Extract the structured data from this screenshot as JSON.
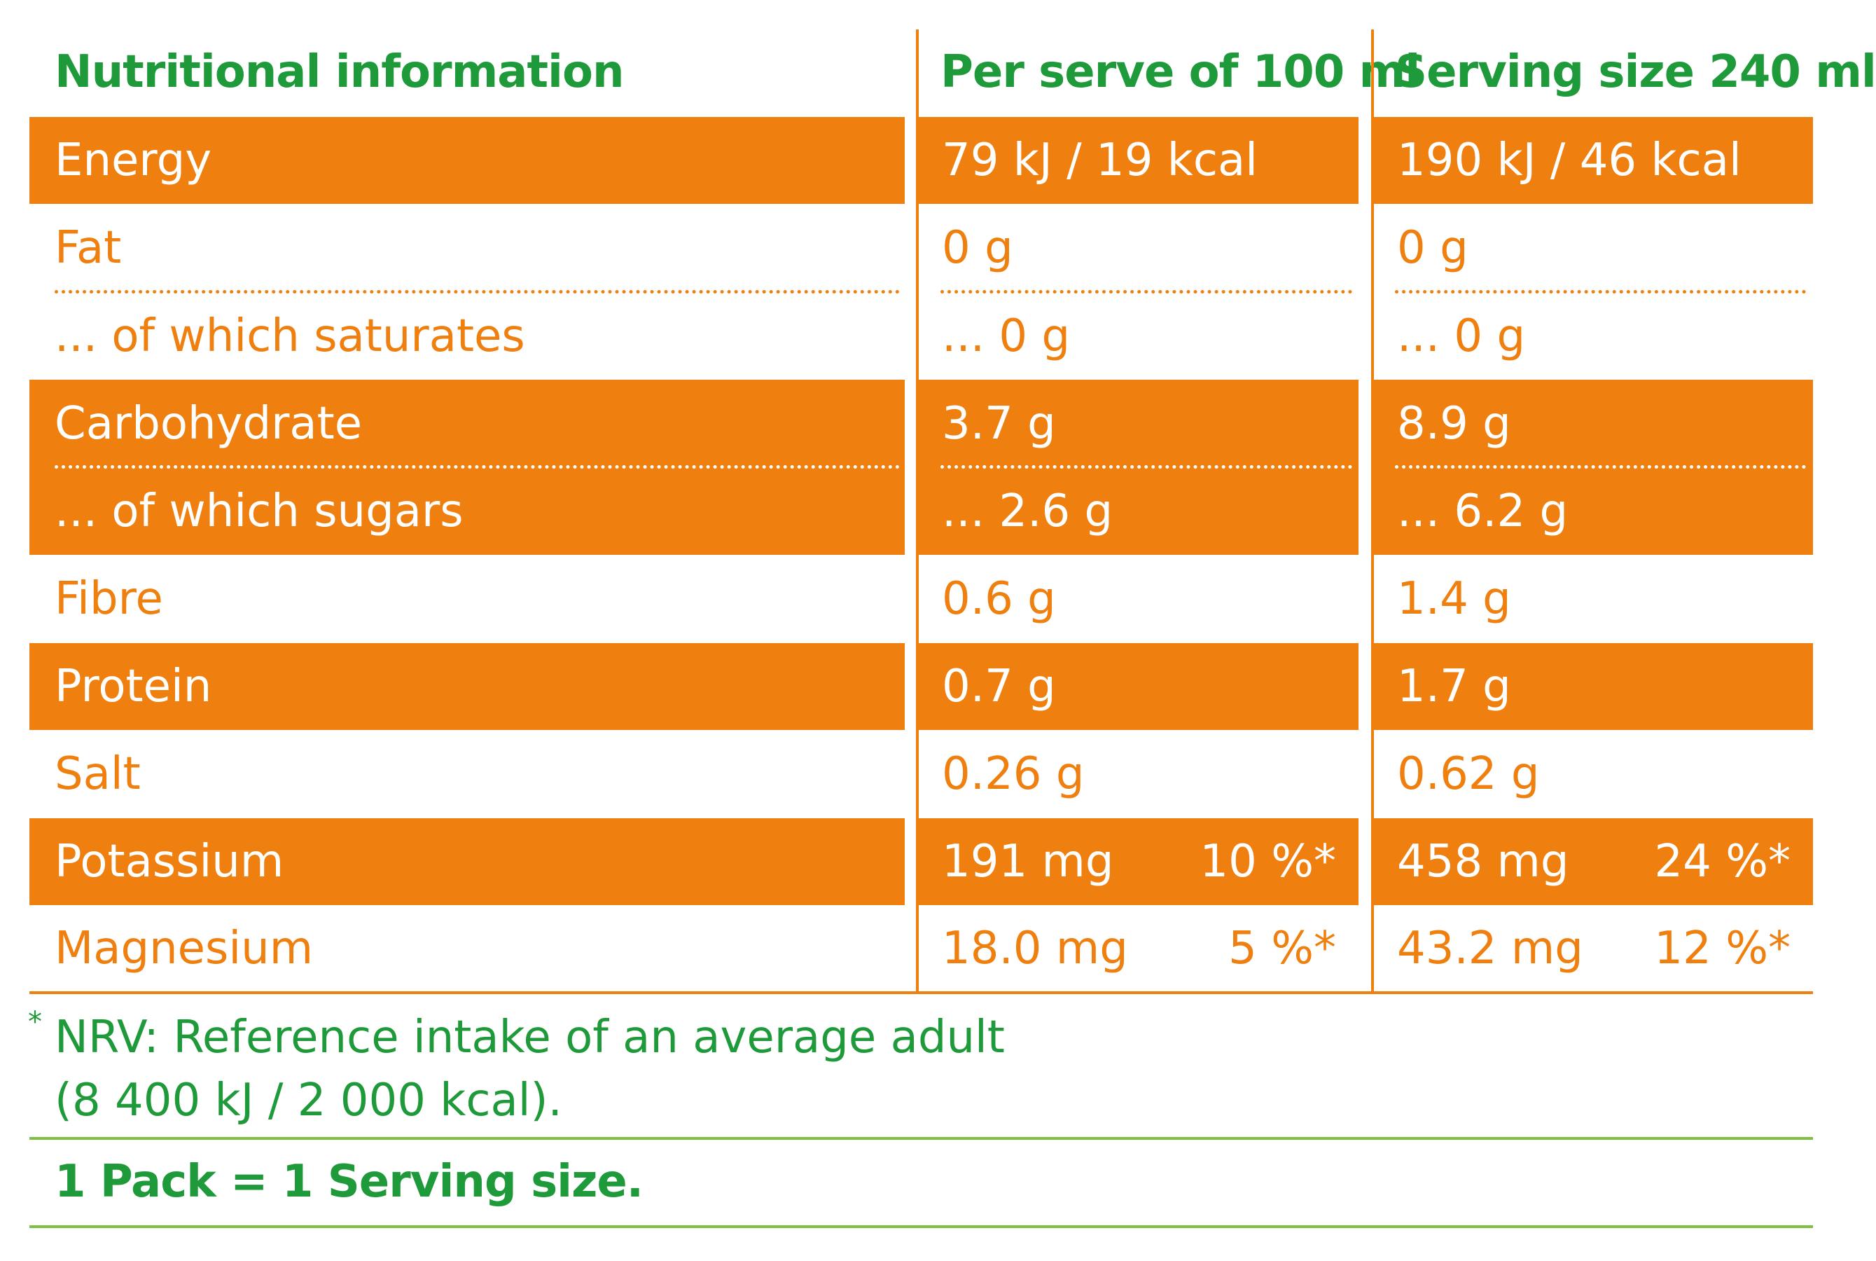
{
  "colors": {
    "orange": "#ef7f0e",
    "green": "#1f9a3a",
    "light_green": "#7cc142"
  },
  "headers": {
    "label": "Nutritional information",
    "per_100": "Per serve of 100 ml",
    "per_serving": "Serving size 240 ml"
  },
  "rows": [
    {
      "label": "Energy",
      "per_100": "79 kJ / 19 kcal",
      "per_serving": "190 kJ / 46 kcal"
    },
    {
      "label": "Fat",
      "per_100": "0 g",
      "per_serving": "0 g"
    },
    {
      "label": "... of which saturates",
      "per_100": "... 0 g",
      "per_serving": "... 0 g"
    },
    {
      "label": "Carbohydrate",
      "per_100": "3.7 g",
      "per_serving": "8.9 g"
    },
    {
      "label": "... of which sugars",
      "per_100": "... 2.6 g",
      "per_serving": "... 6.2 g"
    },
    {
      "label": "Fibre",
      "per_100": "0.6 g",
      "per_serving": "1.4 g"
    },
    {
      "label": "Protein",
      "per_100": "0.7 g",
      "per_serving": "1.7 g"
    },
    {
      "label": "Salt",
      "per_100": "0.26 g",
      "per_serving": "0.62 g"
    },
    {
      "label": "Potassium",
      "per_100": "191 mg",
      "per_100_nrv": "10 %*",
      "per_serving": "458 mg",
      "per_serving_nrv": "24 %*"
    },
    {
      "label": "Magnesium",
      "per_100": "18.0 mg",
      "per_100_nrv": "5 %*",
      "per_serving": "43.2 mg",
      "per_serving_nrv": "12 %*"
    }
  ],
  "footnote": {
    "marker": "*",
    "line1": "NRV: Reference intake of an average adult",
    "line2": "(8 400 kJ / 2 000 kcal)."
  },
  "pack_note": "1 Pack = 1 Serving size."
}
